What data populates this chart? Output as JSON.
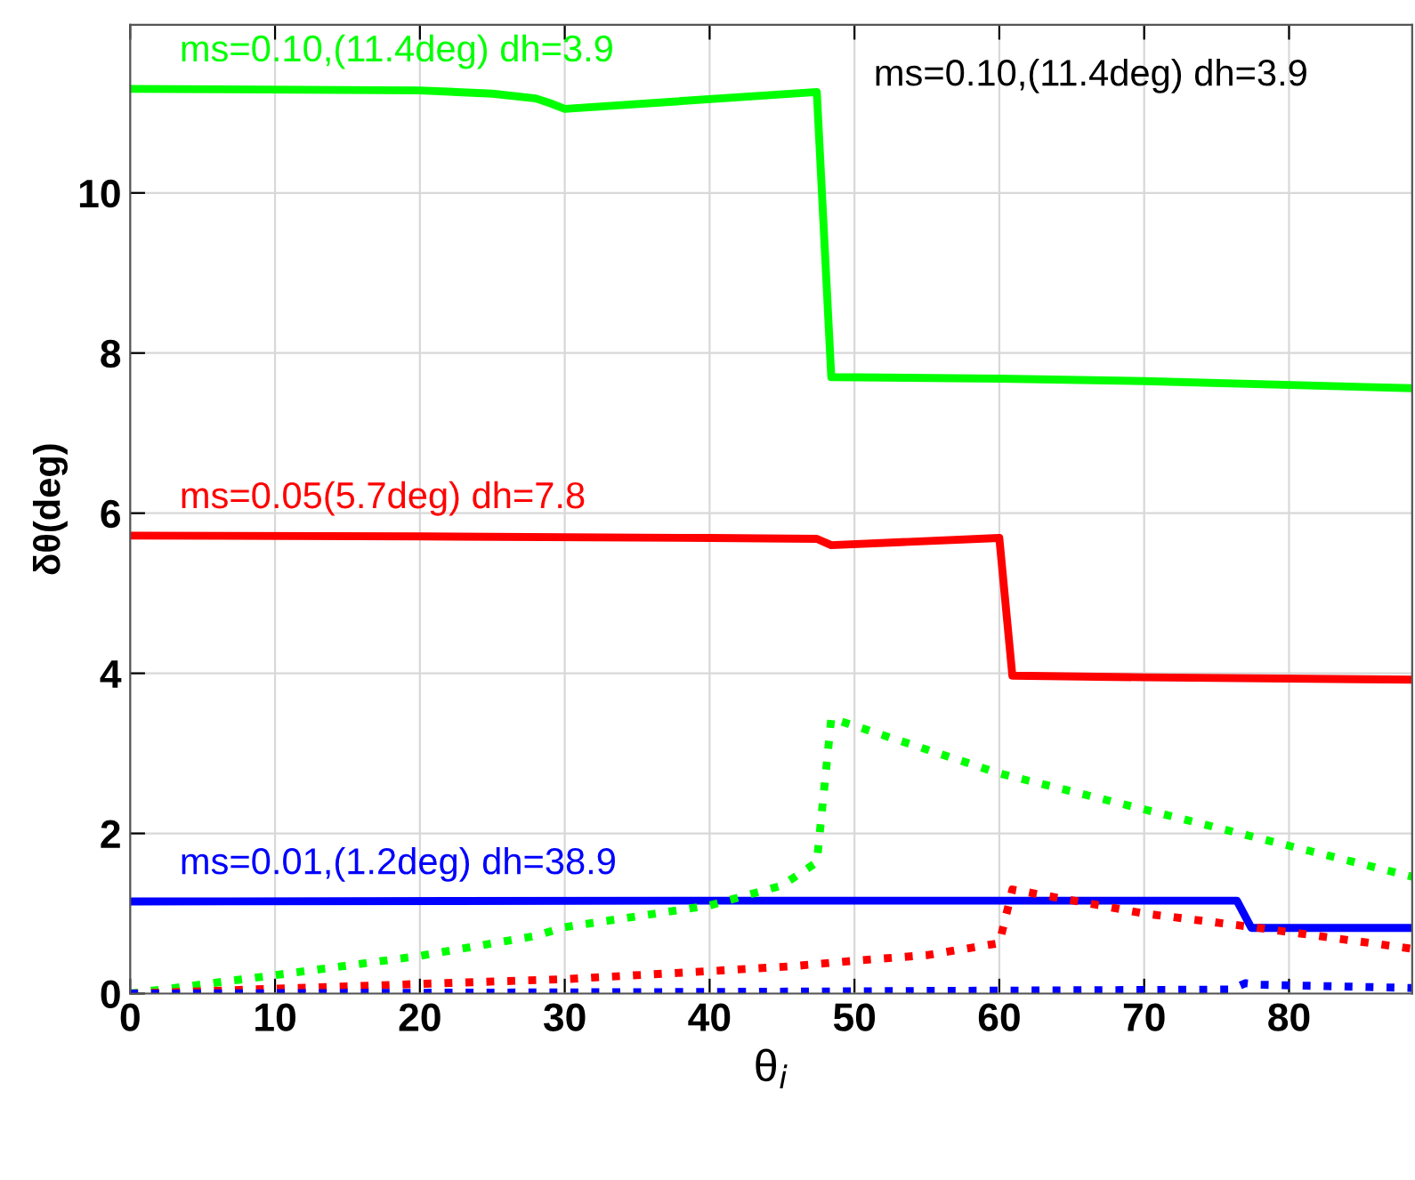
{
  "chart_data": {
    "type": "line",
    "xlabel": "θ$_{i}$",
    "ylabel": "δθ(deg)",
    "xlim": [
      0,
      88.5
    ],
    "ylim": [
      0,
      12.1
    ],
    "xticks": [
      0,
      10,
      20,
      30,
      40,
      50,
      60,
      70,
      80
    ],
    "yticks": [
      0,
      2,
      4,
      6,
      8,
      10
    ],
    "grid": true,
    "series": [
      {
        "name": "ms=0.10,(11.4deg) dh=3.9",
        "color": "#00ff00",
        "line_style": "solid",
        "x": [
          0,
          20,
          25,
          28,
          29,
          30,
          47.4,
          48.4,
          60,
          70,
          88.5
        ],
        "values": [
          11.3,
          11.28,
          11.24,
          11.18,
          11.12,
          11.05,
          11.26,
          7.7,
          7.68,
          7.65,
          7.56
        ]
      },
      {
        "name": "ms=0.05(5.7deg) dh=7.8",
        "color": "#ff0000",
        "line_style": "solid",
        "x": [
          0,
          20,
          40,
          47.4,
          48.4,
          60,
          60.9,
          70,
          88.5
        ],
        "values": [
          5.72,
          5.71,
          5.69,
          5.68,
          5.6,
          5.69,
          3.97,
          3.95,
          3.92
        ]
      },
      {
        "name": "ms=0.01,(1.2deg) dh=38.9",
        "color": "#0000ff",
        "line_style": "solid",
        "x": [
          0,
          40,
          60,
          76.4,
          77.4,
          88.5
        ],
        "values": [
          1.15,
          1.16,
          1.16,
          1.16,
          0.82,
          0.82
        ]
      },
      {
        "color": "#00ff00",
        "line_style": "dotted",
        "x": [
          0,
          10,
          20,
          28,
          30,
          40,
          45,
          47.4,
          48.4,
          60,
          70,
          88.5
        ],
        "values": [
          0.0,
          0.23,
          0.47,
          0.72,
          0.83,
          1.1,
          1.35,
          1.64,
          3.44,
          2.75,
          2.3,
          1.46
        ]
      },
      {
        "color": "#ff0000",
        "line_style": "dotted",
        "x": [
          0,
          10,
          20,
          30,
          40,
          45.6,
          50,
          55,
          60,
          60.9,
          70,
          77.5,
          88.5
        ],
        "values": [
          0.0,
          0.06,
          0.12,
          0.18,
          0.28,
          0.34,
          0.41,
          0.48,
          0.63,
          1.3,
          1.0,
          0.83,
          0.56
        ]
      },
      {
        "color": "#0000ff",
        "line_style": "dotted",
        "x": [
          0,
          40,
          76,
          77,
          78,
          88.5
        ],
        "values": [
          0.0,
          0.02,
          0.05,
          0.13,
          0.11,
          0.07
        ]
      }
    ],
    "annotations": [
      "ms=0.10,(11.4deg) dh=3.9"
    ]
  }
}
